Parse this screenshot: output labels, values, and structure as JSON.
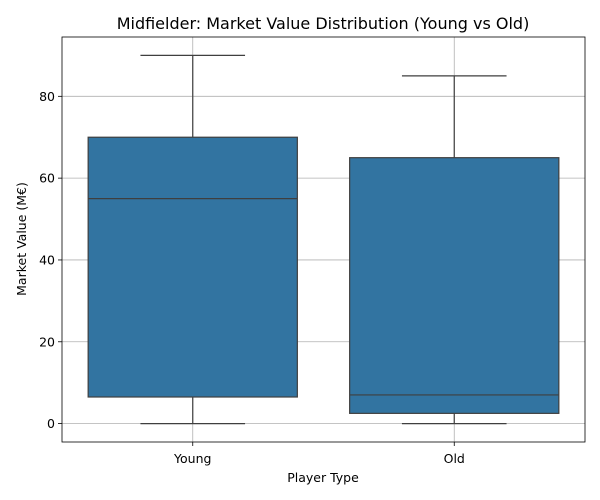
{
  "chart_data": {
    "type": "box",
    "title": "Midfielder: Market Value Distribution (Young vs Old)",
    "xlabel": "Player Type",
    "ylabel": "Market Value (M€)",
    "categories": [
      "Young",
      "Old"
    ],
    "boxes": [
      {
        "category": "Young",
        "whisker_low": 0,
        "q1": 6.5,
        "median": 55,
        "q3": 70,
        "whisker_high": 90
      },
      {
        "category": "Old",
        "whisker_low": 0,
        "q1": 2.5,
        "median": 7,
        "q3": 65,
        "whisker_high": 85
      }
    ],
    "ylim": [
      -4.5,
      94.5
    ],
    "yticks": [
      0,
      20,
      40,
      60,
      80
    ],
    "grid": true,
    "colors": {
      "box_fill": "#3274a1",
      "box_edge": "#3f3f3f"
    }
  }
}
